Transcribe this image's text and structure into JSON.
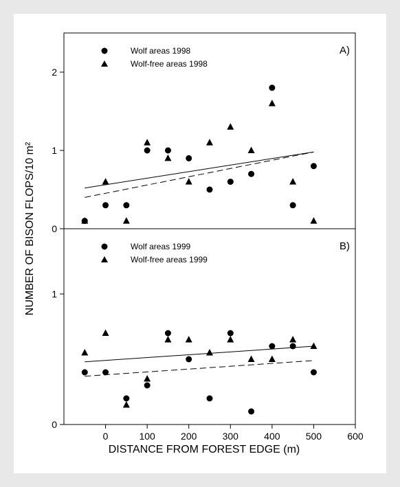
{
  "chart_data": {
    "type": "scatter",
    "ylabel": "NUMBER OF BISON FLOPS/10 m²",
    "xlabel": "DISTANCE FROM FOREST EDGE (m)",
    "xlim": [
      -100,
      600
    ],
    "xticks": [
      0,
      100,
      200,
      300,
      400,
      500,
      600
    ],
    "grid": false,
    "legend_position": "top-left",
    "panels": [
      {
        "label": "A)",
        "ylim": [
          0,
          2.5
        ],
        "yticks": [
          0,
          1,
          2
        ],
        "series": [
          {
            "name": "Wolf areas 1998",
            "marker": "circle",
            "points": [
              [
                -50,
                0.1
              ],
              [
                0,
                0.3
              ],
              [
                50,
                0.3
              ],
              [
                100,
                1.0
              ],
              [
                150,
                1.0
              ],
              [
                200,
                0.9
              ],
              [
                250,
                0.5
              ],
              [
                300,
                0.6
              ],
              [
                350,
                0.7
              ],
              [
                400,
                1.8
              ],
              [
                450,
                0.3
              ],
              [
                500,
                0.8
              ]
            ],
            "trend": {
              "style": "solid",
              "x": [
                -50,
                500
              ],
              "y": [
                0.52,
                0.98
              ]
            }
          },
          {
            "name": "Wolf-free areas 1998",
            "marker": "triangle",
            "points": [
              [
                -50,
                0.1
              ],
              [
                0,
                0.6
              ],
              [
                50,
                0.1
              ],
              [
                100,
                1.1
              ],
              [
                150,
                0.9
              ],
              [
                200,
                0.6
              ],
              [
                250,
                1.1
              ],
              [
                300,
                1.3
              ],
              [
                350,
                1.0
              ],
              [
                400,
                1.6
              ],
              [
                450,
                0.6
              ],
              [
                500,
                0.1
              ]
            ],
            "trend": {
              "style": "dashed",
              "x": [
                -50,
                500
              ],
              "y": [
                0.4,
                0.98
              ]
            }
          }
        ]
      },
      {
        "label": "B)",
        "ylim": [
          0,
          1.5
        ],
        "yticks": [
          0,
          1
        ],
        "series": [
          {
            "name": "Wolf areas 1999",
            "marker": "circle",
            "points": [
              [
                -50,
                0.4
              ],
              [
                0,
                0.4
              ],
              [
                50,
                0.2
              ],
              [
                100,
                0.3
              ],
              [
                150,
                0.7
              ],
              [
                200,
                0.5
              ],
              [
                250,
                0.2
              ],
              [
                300,
                0.7
              ],
              [
                350,
                0.1
              ],
              [
                400,
                0.6
              ],
              [
                450,
                0.6
              ],
              [
                500,
                0.4
              ]
            ],
            "trend": {
              "style": "solid",
              "x": [
                -50,
                500
              ],
              "y": [
                0.48,
                0.6
              ]
            }
          },
          {
            "name": "Wolf-free areas 1999",
            "marker": "triangle",
            "points": [
              [
                -50,
                0.55
              ],
              [
                0,
                0.7
              ],
              [
                50,
                0.15
              ],
              [
                100,
                0.35
              ],
              [
                150,
                0.65
              ],
              [
                200,
                0.65
              ],
              [
                250,
                0.55
              ],
              [
                300,
                0.65
              ],
              [
                350,
                0.5
              ],
              [
                400,
                0.5
              ],
              [
                450,
                0.65
              ],
              [
                500,
                0.6
              ]
            ],
            "trend": {
              "style": "dashed",
              "x": [
                -50,
                500
              ],
              "y": [
                0.37,
                0.49
              ]
            }
          }
        ]
      }
    ]
  }
}
